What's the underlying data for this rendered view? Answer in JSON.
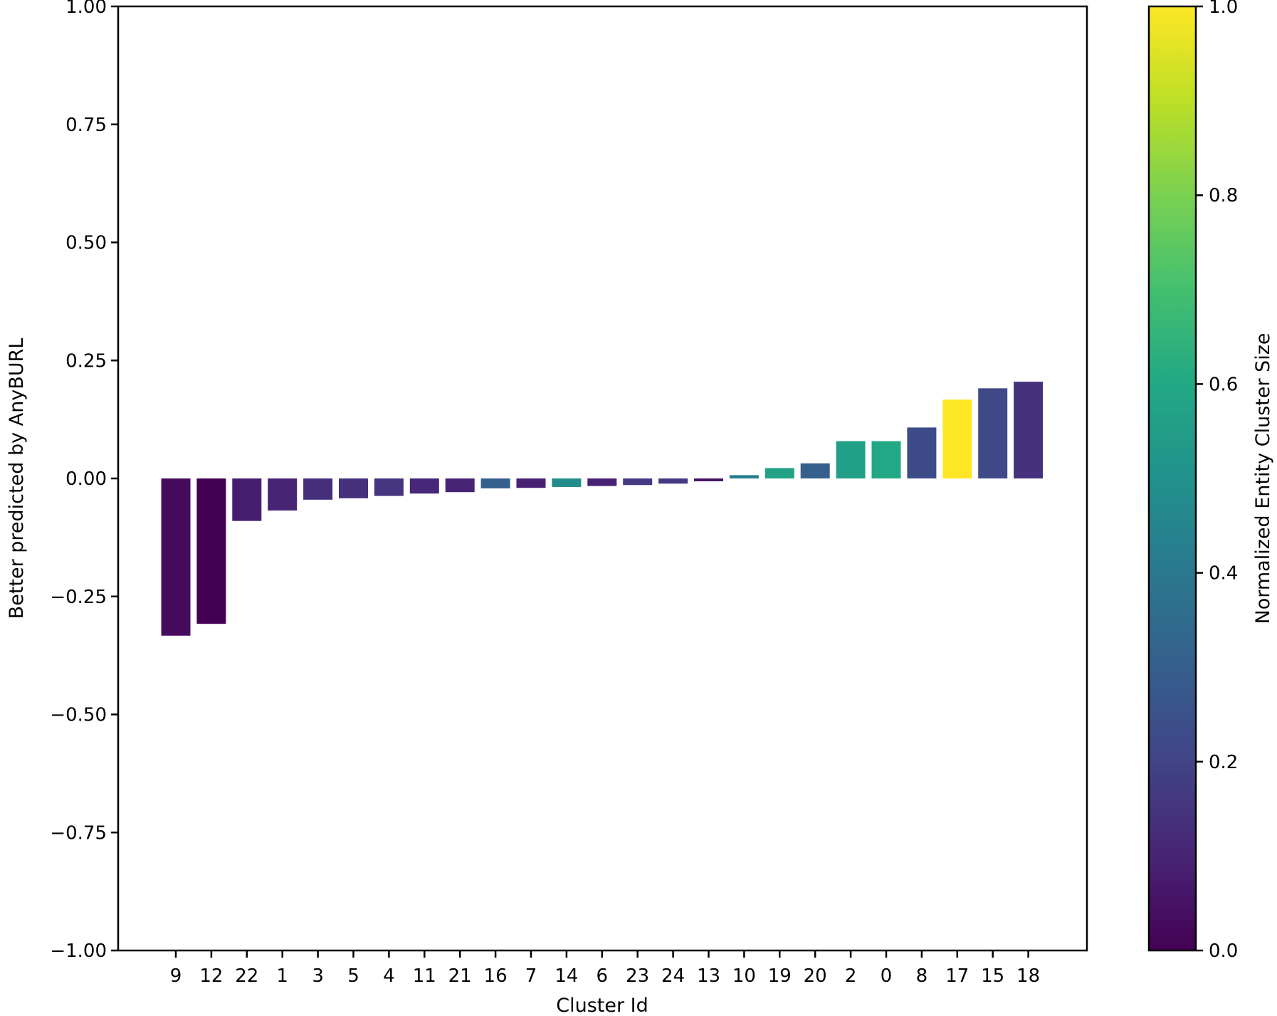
{
  "chart_data": {
    "type": "bar",
    "categories": [
      "9",
      "12",
      "22",
      "1",
      "3",
      "5",
      "4",
      "11",
      "21",
      "16",
      "7",
      "14",
      "6",
      "23",
      "24",
      "13",
      "10",
      "19",
      "20",
      "2",
      "0",
      "8",
      "17",
      "15",
      "18"
    ],
    "values": [
      -0.333,
      -0.308,
      -0.09,
      -0.068,
      -0.045,
      -0.042,
      -0.037,
      -0.032,
      -0.029,
      -0.021,
      -0.02,
      -0.018,
      -0.016,
      -0.014,
      -0.011,
      -0.006,
      0.007,
      0.022,
      0.032,
      0.079,
      0.079,
      0.108,
      0.167,
      0.191,
      0.205
    ],
    "color_values": [
      0.03,
      0.0,
      0.08,
      0.1,
      0.13,
      0.14,
      0.15,
      0.11,
      0.1,
      0.3,
      0.09,
      0.48,
      0.09,
      0.17,
      0.17,
      0.05,
      0.42,
      0.57,
      0.3,
      0.56,
      0.6,
      0.23,
      1.0,
      0.22,
      0.14
    ],
    "title": "",
    "xlabel": "Cluster Id",
    "ylabel": "Better predicted by AnyBURL",
    "ylim": [
      -1.0,
      1.0
    ],
    "yticks": [
      "1.00",
      "0.75",
      "0.50",
      "0.25",
      "0.00",
      "−0.25",
      "−0.50",
      "−0.75",
      "−1.00"
    ],
    "ytick_values": [
      1.0,
      0.75,
      0.5,
      0.25,
      0.0,
      -0.25,
      -0.5,
      -0.75,
      -1.0
    ],
    "grid": false,
    "colorbar": {
      "label": "Normalized Entity Cluster Size",
      "colormap": "viridis",
      "range": [
        0.0,
        1.0
      ],
      "ticks": [
        "0.0",
        "0.2",
        "0.4",
        "0.6",
        "0.8",
        "1.0"
      ],
      "tick_values": [
        0.0,
        0.2,
        0.4,
        0.6,
        0.8,
        1.0
      ]
    }
  }
}
